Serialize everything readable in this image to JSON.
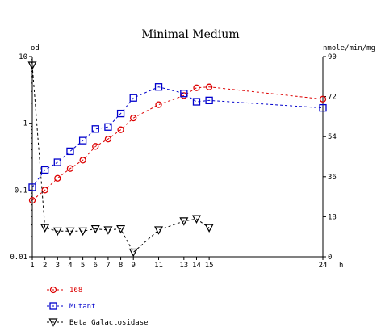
{
  "chart_data": {
    "type": "line",
    "title": "Minimal Medium",
    "left_axis_label": "od",
    "right_axis_label": "nmole/min/mg",
    "x_unit_label": "h",
    "x_ticks": [
      1,
      2,
      3,
      4,
      5,
      6,
      7,
      8,
      9,
      11,
      13,
      14,
      15,
      24
    ],
    "x_tick_labels": [
      "1",
      "2",
      "3",
      "4",
      "5",
      "6",
      "7",
      "8",
      "9",
      "11",
      "13",
      "14",
      "15",
      "24"
    ],
    "xlim": [
      1,
      24
    ],
    "y_left_scale": "log",
    "y_left_lim": [
      0.01,
      10
    ],
    "y_left_ticks": [
      0.01,
      0.1,
      1,
      10
    ],
    "y_left_tick_labels": [
      "0.01",
      "0.1",
      "1",
      "10"
    ],
    "y_right_scale": "linear",
    "y_right_lim": [
      0,
      90
    ],
    "y_right_ticks": [
      0,
      18,
      36,
      54,
      72,
      90
    ],
    "y_right_tick_labels": [
      "0",
      "18",
      "36",
      "54",
      "72",
      "90"
    ],
    "legend_position": "bottom-left",
    "series": [
      {
        "name": "168",
        "axis": "left",
        "marker": "circle",
        "color": "#dd0000",
        "x": [
          1,
          2,
          3,
          4,
          5,
          6,
          7,
          8,
          9,
          11,
          13,
          14,
          15,
          24
        ],
        "y": [
          0.07,
          0.1,
          0.15,
          0.21,
          0.28,
          0.45,
          0.58,
          0.8,
          1.2,
          1.9,
          2.6,
          3.4,
          3.5,
          2.3
        ]
      },
      {
        "name": "Mutant",
        "axis": "left",
        "marker": "square",
        "color": "#0000cc",
        "x": [
          1,
          2,
          3,
          4,
          5,
          6,
          7,
          8,
          9,
          11,
          13,
          14,
          15,
          24
        ],
        "y": [
          0.11,
          0.2,
          0.26,
          0.38,
          0.55,
          0.82,
          0.88,
          1.4,
          2.4,
          3.5,
          2.8,
          2.1,
          2.2,
          1.7
        ]
      },
      {
        "name": "Beta Galactosidase",
        "axis": "right",
        "marker": "triangle-down",
        "color": "#000000",
        "x": [
          1,
          2,
          3,
          4,
          5,
          6,
          7,
          8,
          9,
          11,
          13,
          14,
          15
        ],
        "y": [
          86,
          13,
          11.5,
          11.5,
          11.5,
          12.5,
          12,
          12.5,
          2,
          12,
          16,
          17,
          13
        ]
      }
    ]
  }
}
